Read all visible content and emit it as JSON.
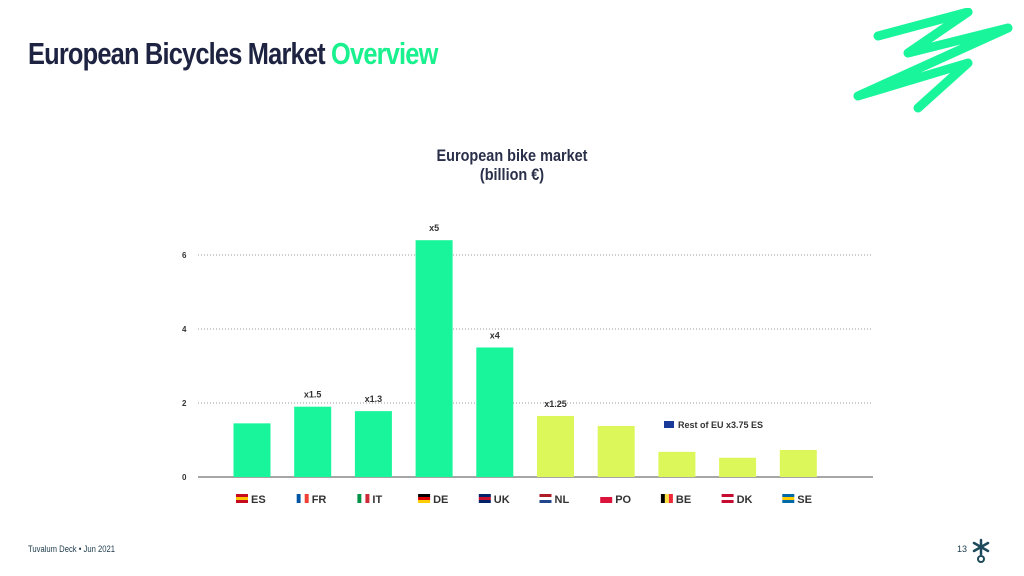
{
  "slide": {
    "title_main": "European Bicycles Market",
    "title_accent": "Overview",
    "footer": "Tuvalum Deck • Jun 2021",
    "page_number": "13"
  },
  "colors": {
    "primary": "#19f59b",
    "secondary": "#dcf75a",
    "title": "#1d2340"
  },
  "chart_data": {
    "type": "bar",
    "title": "European bike market\n(billion €)",
    "title_lines": [
      "European bike market",
      "(billion €)"
    ],
    "categories": [
      "ES",
      "FR",
      "IT",
      "DE",
      "UK",
      "NL",
      "PO",
      "BE",
      "DK",
      "SE"
    ],
    "flags": [
      "spain-flag-icon",
      "france-flag-icon",
      "italy-flag-icon",
      "germany-flag-icon",
      "uk-flag-icon",
      "netherlands-flag-icon",
      "poland-flag-icon",
      "belgium-flag-icon",
      "denmark-flag-icon",
      "sweden-flag-icon"
    ],
    "values": [
      1.45,
      1.9,
      1.78,
      6.4,
      3.5,
      1.65,
      1.38,
      0.68,
      0.52,
      0.73
    ],
    "bar_labels": [
      "",
      "x1.5",
      "x1.3",
      "x5",
      "x4",
      "x1.25",
      "",
      "",
      "",
      ""
    ],
    "bar_groups": [
      "primary",
      "primary",
      "primary",
      "primary",
      "primary",
      "secondary",
      "secondary",
      "secondary",
      "secondary",
      "secondary"
    ],
    "annotation": "Rest of EU x3.75 ES",
    "yticks": [
      0,
      2,
      4,
      6
    ],
    "ylim": [
      0,
      6.5
    ],
    "grid": true
  }
}
